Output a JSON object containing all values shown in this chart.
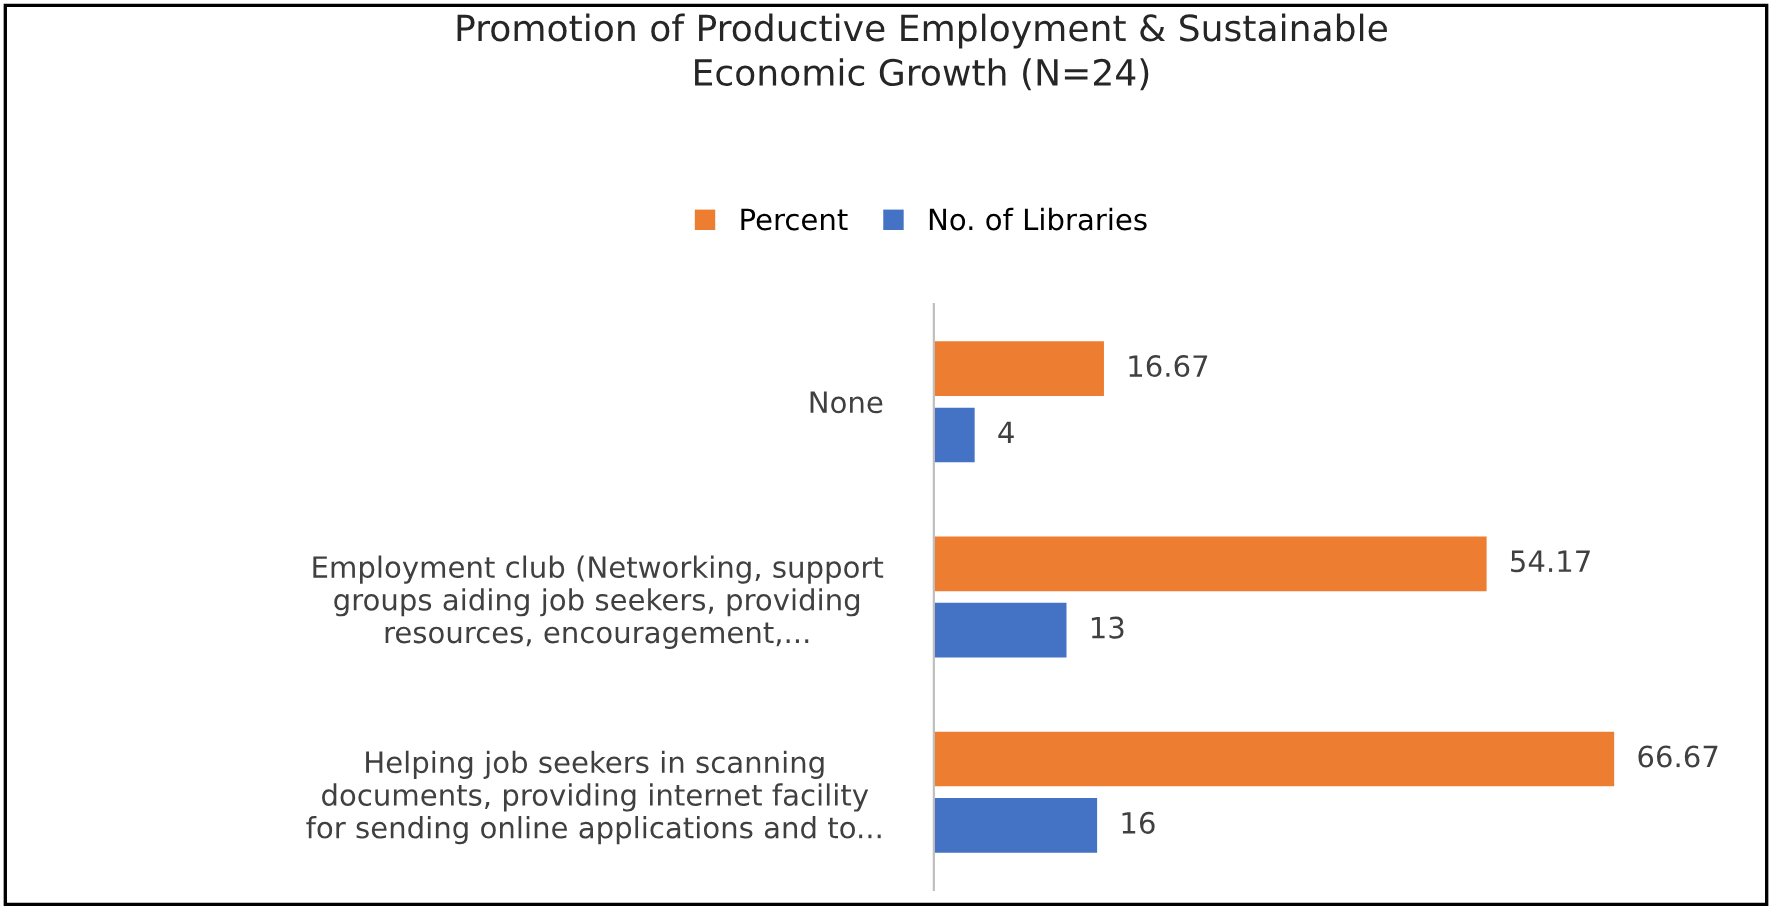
{
  "chart_data": {
    "type": "bar",
    "orientation": "horizontal",
    "title": "Promotion of Productive Employment & Sustainable\nEconomic Growth (N=24)",
    "categories": [
      "None",
      "Employment club (Networking, support\ngroups aiding job seekers, providing\nresources, encouragement,...",
      "Helping job seekers in scanning\ndocuments, providing internet facility\nfor sending online applications and to..."
    ],
    "series": [
      {
        "name": "Percent",
        "color": "#ed7d31",
        "values": [
          16.67,
          54.17,
          66.67
        ]
      },
      {
        "name": "No. of Libraries",
        "color": "#4472c4",
        "values": [
          4,
          13,
          16
        ]
      }
    ],
    "data_labels": true,
    "legend": "top",
    "grid": false
  }
}
